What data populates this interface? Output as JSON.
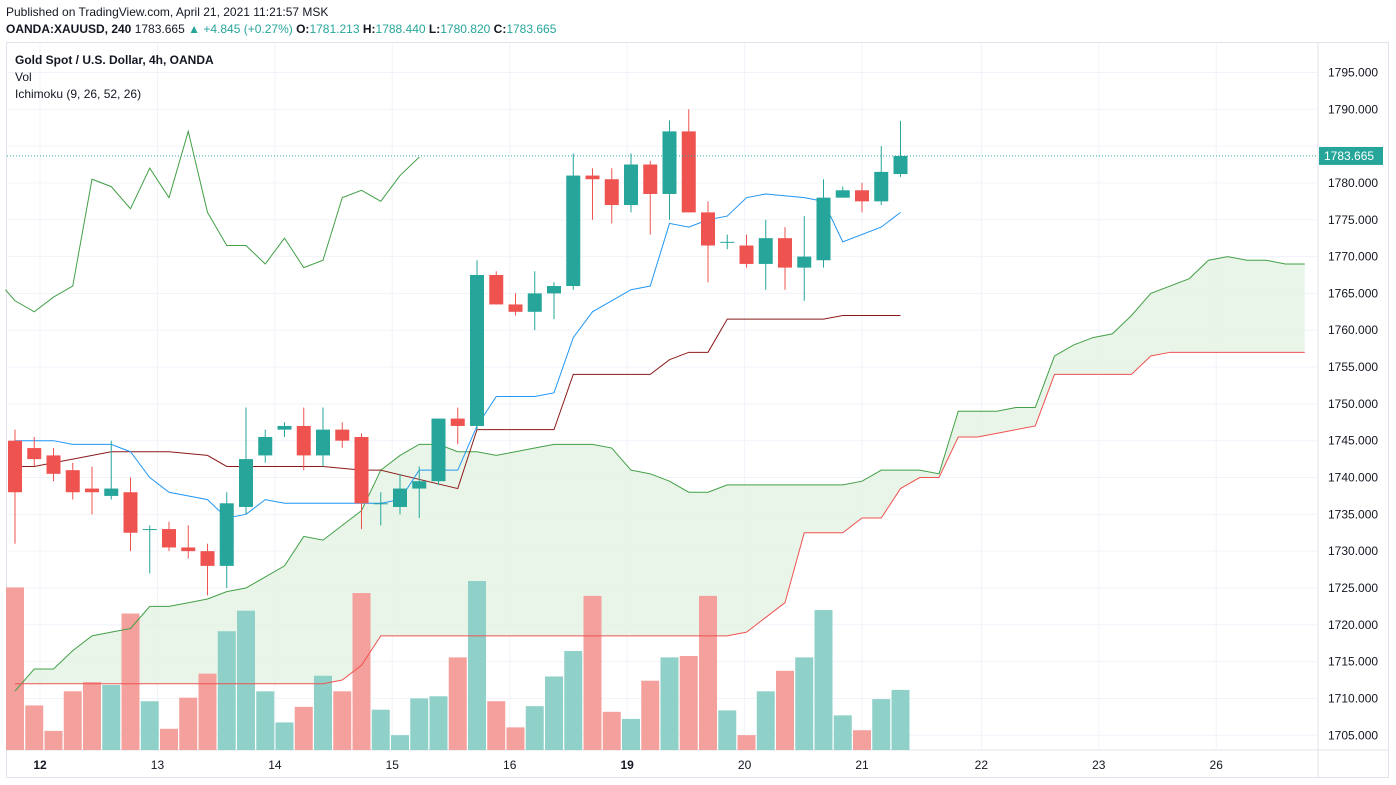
{
  "header": {
    "published": "Published on TradingView.com, April 21, 2021 11:21:57 MSK",
    "symbol": "OANDA:XAUUSD, 240",
    "last": "1783.665",
    "change": "+4.845 (+0.27%)",
    "o_label": "O:",
    "o_val": "1781.213",
    "h_label": "H:",
    "h_val": "1788.440",
    "l_label": "L:",
    "l_val": "1780.820",
    "c_label": "C:",
    "c_val": "1783.665"
  },
  "legend": {
    "title": "Gold Spot / U.S. Dollar, 4h, OANDA",
    "vol": "Vol",
    "ichimoku": "Ichimoku (9, 26, 52, 26)"
  },
  "colors": {
    "up": "#26a69a",
    "down": "#ef5350",
    "vol_up": "#8fd1c8",
    "vol_down": "#f4a09c",
    "conversion": "#2196f3",
    "base": "#8b1a1a",
    "lagging": "#43a047",
    "lead_a": "#43a047",
    "lead_b": "#ef5350",
    "cloud": "#e4f3e4",
    "grid": "#f0f3fa"
  },
  "chart_data": {
    "type": "candlestick",
    "ylim": [
      1703,
      1799
    ],
    "price_label": "1783.665",
    "y_ticks": [
      "1705.000",
      "1710.000",
      "1715.000",
      "1720.000",
      "1725.000",
      "1730.000",
      "1735.000",
      "1740.000",
      "1745.000",
      "1750.000",
      "1755.000",
      "1760.000",
      "1765.000",
      "1770.000",
      "1775.000",
      "1780.000",
      "1785.000",
      "1790.000",
      "1795.000"
    ],
    "x_ticks": [
      {
        "label": "12",
        "i": 1.3,
        "bold": true
      },
      {
        "label": "13",
        "i": 7.4
      },
      {
        "label": "14",
        "i": 13.5
      },
      {
        "label": "15",
        "i": 19.6
      },
      {
        "label": "16",
        "i": 25.7
      },
      {
        "label": "19",
        "i": 31.8,
        "bold": true
      },
      {
        "label": "20",
        "i": 37.9
      },
      {
        "label": "21",
        "i": 44.0
      },
      {
        "label": "22",
        "i": 50.2
      },
      {
        "label": "23",
        "i": 56.3
      },
      {
        "label": "26",
        "i": 62.4
      }
    ],
    "candles": [
      [
        1745.0,
        1746.5,
        1731.0,
        1738.0
      ],
      [
        1744.0,
        1745.5,
        1741.5,
        1742.5
      ],
      [
        1743.0,
        1744.0,
        1739.5,
        1740.5
      ],
      [
        1741.0,
        1742.0,
        1737.0,
        1738.0
      ],
      [
        1738.5,
        1741.5,
        1735.0,
        1738.0
      ],
      [
        1737.5,
        1745.0,
        1737.0,
        1738.5
      ],
      [
        1738.0,
        1740.0,
        1730.0,
        1732.5
      ],
      [
        1733.0,
        1733.5,
        1727.0,
        1733.0
      ],
      [
        1733.0,
        1734.0,
        1730.0,
        1730.5
      ],
      [
        1730.5,
        1733.5,
        1729.0,
        1730.0
      ],
      [
        1730.0,
        1731.0,
        1724.0,
        1728.0
      ],
      [
        1728.0,
        1738.0,
        1725.0,
        1736.5
      ],
      [
        1736.0,
        1749.5,
        1735.0,
        1742.5
      ],
      [
        1743.0,
        1746.5,
        1742.0,
        1745.5
      ],
      [
        1746.5,
        1747.5,
        1745.5,
        1747.0
      ],
      [
        1747.0,
        1749.5,
        1741.0,
        1743.0
      ],
      [
        1743.0,
        1749.5,
        1741.5,
        1746.5
      ],
      [
        1746.5,
        1747.5,
        1744.0,
        1745.0
      ],
      [
        1745.5,
        1746.0,
        1733.0,
        1736.5
      ],
      [
        1736.5,
        1738.0,
        1733.5,
        1736.5
      ],
      [
        1736.0,
        1740.5,
        1735.0,
        1738.5
      ],
      [
        1738.5,
        1741.5,
        1734.5,
        1739.5
      ],
      [
        1739.5,
        1748.0,
        1739.0,
        1748.0
      ],
      [
        1748.0,
        1749.5,
        1744.5,
        1747.0
      ],
      [
        1747.0,
        1769.5,
        1746.5,
        1767.5
      ],
      [
        1767.5,
        1768.0,
        1763.5,
        1763.5
      ],
      [
        1763.5,
        1765.0,
        1762.0,
        1762.5
      ],
      [
        1762.5,
        1768.0,
        1760.0,
        1765.0
      ],
      [
        1765.0,
        1766.5,
        1761.5,
        1766.0
      ],
      [
        1766.0,
        1784.0,
        1765.5,
        1781.0
      ],
      [
        1781.0,
        1782.0,
        1775.0,
        1780.5
      ],
      [
        1780.5,
        1782.0,
        1774.5,
        1777.0
      ],
      [
        1777.0,
        1784.0,
        1776.0,
        1782.5
      ],
      [
        1782.5,
        1783.0,
        1773.0,
        1778.5
      ],
      [
        1778.5,
        1788.5,
        1775.0,
        1787.0
      ],
      [
        1787.0,
        1790.0,
        1776.0,
        1776.0
      ],
      [
        1776.0,
        1777.5,
        1766.5,
        1771.5
      ],
      [
        1772.0,
        1773.0,
        1771.0,
        1772.0
      ],
      [
        1771.5,
        1773.0,
        1768.5,
        1769.0
      ],
      [
        1769.0,
        1775.0,
        1765.5,
        1772.5
      ],
      [
        1772.5,
        1774.0,
        1765.5,
        1768.5
      ],
      [
        1768.5,
        1775.5,
        1764.0,
        1770.0
      ],
      [
        1769.5,
        1780.5,
        1768.5,
        1778.0
      ],
      [
        1778.0,
        1779.5,
        1778.0,
        1779.0
      ],
      [
        1779.0,
        1780.0,
        1776.0,
        1777.5
      ],
      [
        1777.5,
        1785.0,
        1777.0,
        1781.5
      ],
      [
        1781.213,
        1788.44,
        1780.82,
        1783.665
      ]
    ],
    "volume_pct": [
      0.23,
      0.063,
      0.027,
      0.083,
      0.096,
      0.092,
      0.193,
      0.069,
      0.03,
      0.074,
      0.108,
      0.168,
      0.197,
      0.083,
      0.039,
      0.061,
      0.105,
      0.083,
      0.222,
      0.057,
      0.021,
      0.073,
      0.076,
      0.131,
      0.239,
      0.069,
      0.032,
      0.062,
      0.104,
      0.14,
      0.218,
      0.054,
      0.044,
      0.098,
      0.131,
      0.133,
      0.218,
      0.056,
      0.021,
      0.083,
      0.112,
      0.131,
      0.198,
      0.049,
      0.028,
      0.072,
      0.085
    ],
    "conversion": [
      [
        0,
        1745.0
      ],
      [
        2,
        1745.0
      ],
      [
        3,
        1744.5
      ],
      [
        5,
        1744.5
      ],
      [
        6,
        1743.5
      ],
      [
        7,
        1740.0
      ],
      [
        8,
        1738.0
      ],
      [
        10,
        1737.0
      ],
      [
        11,
        1734.5
      ],
      [
        12,
        1735.0
      ],
      [
        13,
        1737.0
      ],
      [
        14,
        1736.5
      ],
      [
        16,
        1736.5
      ],
      [
        17,
        1736.5
      ],
      [
        19,
        1736.5
      ],
      [
        20,
        1737.0
      ],
      [
        21,
        1741.0
      ],
      [
        23,
        1741.0
      ],
      [
        24,
        1747.0
      ],
      [
        25,
        1751.0
      ],
      [
        27,
        1751.0
      ],
      [
        28,
        1751.5
      ],
      [
        29,
        1759.0
      ],
      [
        30,
        1762.5
      ],
      [
        32,
        1765.5
      ],
      [
        33,
        1766.0
      ],
      [
        34,
        1774.5
      ],
      [
        35,
        1774.0
      ],
      [
        36,
        1775.0
      ],
      [
        37,
        1775.5
      ],
      [
        38,
        1778.0
      ],
      [
        39,
        1778.5
      ],
      [
        41,
        1778.0
      ],
      [
        42,
        1777.5
      ],
      [
        43,
        1772.0
      ],
      [
        45,
        1774.0
      ],
      [
        46,
        1776.0
      ]
    ],
    "base": [
      [
        0,
        1741.5
      ],
      [
        1,
        1741.5
      ],
      [
        2,
        1742.0
      ],
      [
        3,
        1742.5
      ],
      [
        5,
        1743.5
      ],
      [
        8,
        1743.5
      ],
      [
        10,
        1743.0
      ],
      [
        11,
        1741.5
      ],
      [
        16,
        1741.5
      ],
      [
        18,
        1741.0
      ],
      [
        19,
        1741.0
      ],
      [
        23,
        1738.5
      ],
      [
        24,
        1746.5
      ],
      [
        28,
        1746.5
      ],
      [
        29,
        1754.0
      ],
      [
        33,
        1754.0
      ],
      [
        34,
        1756.0
      ],
      [
        35,
        1757.0
      ],
      [
        36,
        1757.0
      ],
      [
        37,
        1761.5
      ],
      [
        42,
        1761.5
      ],
      [
        43,
        1762.0
      ],
      [
        44,
        1762.0
      ],
      [
        46,
        1762.0
      ]
    ],
    "lagging": [
      [
        -0.5,
        1765.5
      ],
      [
        0,
        1764.0
      ],
      [
        1,
        1762.5
      ],
      [
        2,
        1764.5
      ],
      [
        3,
        1766.0
      ],
      [
        4,
        1780.5
      ],
      [
        5,
        1779.5
      ],
      [
        6,
        1776.5
      ],
      [
        7,
        1782.0
      ],
      [
        8,
        1778.0
      ],
      [
        9,
        1787.0
      ],
      [
        10,
        1776.0
      ],
      [
        11,
        1771.5
      ],
      [
        12,
        1771.5
      ],
      [
        13,
        1769.0
      ],
      [
        14,
        1772.5
      ],
      [
        15,
        1768.5
      ],
      [
        16,
        1769.5
      ],
      [
        17,
        1778.0
      ],
      [
        18,
        1779.0
      ],
      [
        19,
        1777.5
      ],
      [
        20,
        1781.0
      ],
      [
        21,
        1783.5
      ]
    ],
    "lead_a": [
      [
        0,
        1711.0
      ],
      [
        1,
        1714.0
      ],
      [
        2,
        1714.0
      ],
      [
        3,
        1716.5
      ],
      [
        4,
        1718.5
      ],
      [
        5,
        1719.0
      ],
      [
        6,
        1719.5
      ],
      [
        7,
        1722.5
      ],
      [
        8,
        1722.5
      ],
      [
        9,
        1723.0
      ],
      [
        10,
        1723.5
      ],
      [
        11,
        1724.5
      ],
      [
        12,
        1725.0
      ],
      [
        13,
        1726.5
      ],
      [
        14,
        1728.0
      ],
      [
        15,
        1732.0
      ],
      [
        16,
        1731.5
      ],
      [
        17,
        1733.5
      ],
      [
        18,
        1735.5
      ],
      [
        19,
        1741.0
      ],
      [
        20,
        1743.0
      ],
      [
        21,
        1744.5
      ],
      [
        22,
        1744.5
      ],
      [
        23,
        1743.5
      ],
      [
        24,
        1743.5
      ],
      [
        25,
        1743.0
      ],
      [
        26,
        1743.5
      ],
      [
        27,
        1744.0
      ],
      [
        28,
        1744.5
      ],
      [
        29,
        1744.5
      ],
      [
        30,
        1744.5
      ],
      [
        31,
        1744.0
      ],
      [
        32,
        1741.0
      ],
      [
        33,
        1740.5
      ],
      [
        34,
        1739.5
      ],
      [
        35,
        1738.0
      ],
      [
        36,
        1738.0
      ],
      [
        37,
        1739.0
      ],
      [
        38,
        1739.0
      ],
      [
        39,
        1739.0
      ],
      [
        40,
        1739.0
      ],
      [
        41,
        1739.0
      ],
      [
        42,
        1739.0
      ],
      [
        43,
        1739.0
      ],
      [
        44,
        1739.5
      ],
      [
        45,
        1741.0
      ],
      [
        46,
        1741.0
      ],
      [
        47,
        1741.0
      ],
      [
        48,
        1740.5
      ],
      [
        49,
        1749.0
      ],
      [
        50,
        1749.0
      ],
      [
        51,
        1749.0
      ],
      [
        52,
        1749.5
      ],
      [
        53,
        1749.5
      ],
      [
        54,
        1756.5
      ],
      [
        55,
        1758.0
      ],
      [
        56,
        1759.0
      ],
      [
        57,
        1759.5
      ],
      [
        58,
        1762.0
      ],
      [
        59,
        1765.0
      ],
      [
        60,
        1766.0
      ],
      [
        61,
        1767.0
      ],
      [
        62,
        1769.5
      ],
      [
        63,
        1770.0
      ],
      [
        64,
        1769.5
      ],
      [
        65,
        1769.5
      ],
      [
        66,
        1769.0
      ],
      [
        67,
        1769.0
      ]
    ],
    "lead_b": [
      [
        0,
        1712.0
      ],
      [
        2,
        1712.0
      ],
      [
        6,
        1712.0
      ],
      [
        10,
        1712.0
      ],
      [
        12,
        1712.0
      ],
      [
        14,
        1712.0
      ],
      [
        16,
        1712.0
      ],
      [
        17,
        1712.5
      ],
      [
        18,
        1714.5
      ],
      [
        19,
        1718.5
      ],
      [
        20,
        1718.5
      ],
      [
        25,
        1718.5
      ],
      [
        30,
        1718.5
      ],
      [
        35,
        1718.5
      ],
      [
        36,
        1718.5
      ],
      [
        37,
        1718.5
      ],
      [
        38,
        1719.0
      ],
      [
        39,
        1721.0
      ],
      [
        40,
        1723.0
      ],
      [
        41,
        1732.5
      ],
      [
        42,
        1732.5
      ],
      [
        43,
        1732.5
      ],
      [
        44,
        1734.5
      ],
      [
        45,
        1734.5
      ],
      [
        46,
        1738.5
      ],
      [
        47,
        1740.0
      ],
      [
        48,
        1740.0
      ],
      [
        49,
        1745.5
      ],
      [
        50,
        1745.5
      ],
      [
        51,
        1746.0
      ],
      [
        52,
        1746.5
      ],
      [
        53,
        1747.0
      ],
      [
        54,
        1754.0
      ],
      [
        55,
        1754.0
      ],
      [
        56,
        1754.0
      ],
      [
        57,
        1754.0
      ],
      [
        58,
        1754.0
      ],
      [
        59,
        1756.5
      ],
      [
        60,
        1757.0
      ],
      [
        61,
        1757.0
      ],
      [
        62,
        1757.0
      ],
      [
        63,
        1757.0
      ],
      [
        64,
        1757.0
      ],
      [
        65,
        1757.0
      ],
      [
        66,
        1757.0
      ],
      [
        67,
        1757.0
      ]
    ]
  }
}
